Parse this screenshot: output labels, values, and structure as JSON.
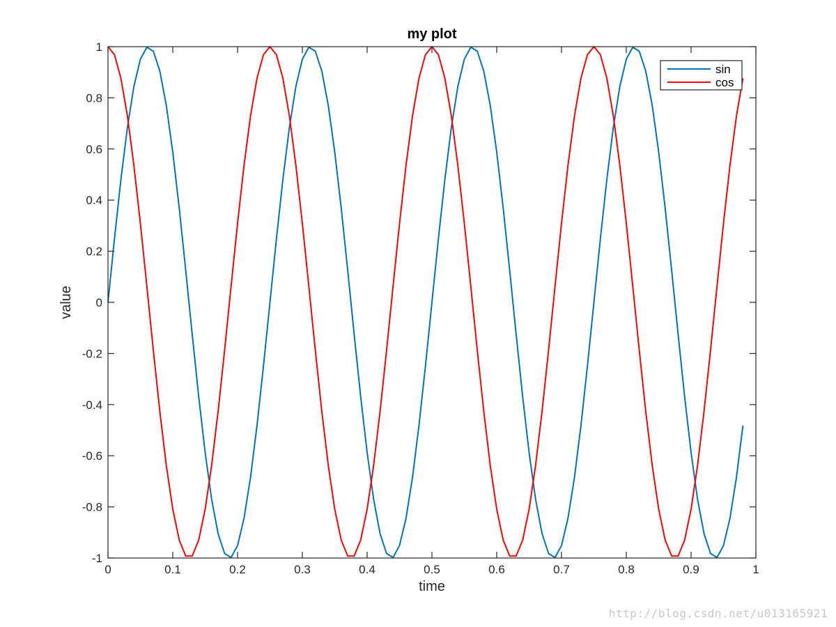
{
  "chart_data": {
    "type": "line",
    "title": "my plot",
    "xlabel": "time",
    "ylabel": "value",
    "xlim": [
      0,
      1
    ],
    "ylim": [
      -1,
      1
    ],
    "xticks": [
      0,
      0.1,
      0.2,
      0.3,
      0.4,
      0.5,
      0.6,
      0.7,
      0.8,
      0.9,
      1
    ],
    "xtick_labels": [
      "0",
      "0.1",
      "0.2",
      "0.3",
      "0.4",
      "0.5",
      "0.6",
      "0.7",
      "0.8",
      "0.9",
      "1"
    ],
    "yticks": [
      -1,
      -0.8,
      -0.6,
      -0.4,
      -0.2,
      0,
      0.2,
      0.4,
      0.6,
      0.8,
      1
    ],
    "ytick_labels": [
      "-1",
      "-0.8",
      "-0.6",
      "-0.4",
      "-0.2",
      "0",
      "0.2",
      "0.4",
      "0.6",
      "0.8",
      "1"
    ],
    "grid": false,
    "legend_position": "top-right",
    "series": [
      {
        "name": "sin",
        "color": "#0072bd",
        "x": [
          0,
          0.01,
          0.02,
          0.03,
          0.04,
          0.05,
          0.06,
          0.07,
          0.08,
          0.09,
          0.1,
          0.11,
          0.12,
          0.13,
          0.14,
          0.15,
          0.16,
          0.17,
          0.18,
          0.19,
          0.2,
          0.21,
          0.22,
          0.23,
          0.24,
          0.25,
          0.26,
          0.27,
          0.28,
          0.29,
          0.3,
          0.31,
          0.32,
          0.33,
          0.34,
          0.35,
          0.36,
          0.37,
          0.38,
          0.39,
          0.4,
          0.41,
          0.42,
          0.43,
          0.44,
          0.45,
          0.46,
          0.47,
          0.48,
          0.49,
          0.5,
          0.51,
          0.52,
          0.53,
          0.54,
          0.55,
          0.56,
          0.57,
          0.58,
          0.59,
          0.6,
          0.61,
          0.62,
          0.63,
          0.64,
          0.65,
          0.66,
          0.67,
          0.68,
          0.69,
          0.7,
          0.71,
          0.72,
          0.73,
          0.74,
          0.75,
          0.76,
          0.77,
          0.78,
          0.79,
          0.8,
          0.81,
          0.82,
          0.83,
          0.84,
          0.85,
          0.86,
          0.87,
          0.88,
          0.89,
          0.9,
          0.91,
          0.92,
          0.93,
          0.94,
          0.95,
          0.96,
          0.97,
          0.98
        ],
        "y": [
          0,
          0.2487,
          0.4818,
          0.6845,
          0.8443,
          0.9511,
          0.998,
          0.9823,
          0.9048,
          0.7705,
          0.5878,
          0.3681,
          0.1253,
          -0.1253,
          -0.3681,
          -0.5878,
          -0.7705,
          -0.9048,
          -0.9823,
          -0.998,
          -0.9511,
          -0.8443,
          -0.6845,
          -0.4818,
          -0.2487,
          0,
          0.2487,
          0.4818,
          0.6845,
          0.8443,
          0.9511,
          0.998,
          0.9823,
          0.9048,
          0.7705,
          0.5878,
          0.3681,
          0.1253,
          -0.1253,
          -0.3681,
          -0.5878,
          -0.7705,
          -0.9048,
          -0.9823,
          -0.998,
          -0.9511,
          -0.8443,
          -0.6845,
          -0.4818,
          -0.2487,
          0,
          0.2487,
          0.4818,
          0.6845,
          0.8443,
          0.9511,
          0.998,
          0.9823,
          0.9048,
          0.7705,
          0.5878,
          0.3681,
          0.1253,
          -0.1253,
          -0.3681,
          -0.5878,
          -0.7705,
          -0.9048,
          -0.9823,
          -0.998,
          -0.9511,
          -0.8443,
          -0.6845,
          -0.4818,
          -0.2487,
          0,
          0.2487,
          0.4818,
          0.6845,
          0.8443,
          0.9511,
          0.998,
          0.9823,
          0.9048,
          0.7705,
          0.5878,
          0.3681,
          0.1253,
          -0.1253,
          -0.3681,
          -0.5878,
          -0.7705,
          -0.9048,
          -0.9823,
          -0.998,
          -0.9511,
          -0.8443,
          -0.6845,
          -0.4818
        ]
      },
      {
        "name": "cos",
        "color": "#ff0000",
        "x": [
          0,
          0.01,
          0.02,
          0.03,
          0.04,
          0.05,
          0.06,
          0.07,
          0.08,
          0.09,
          0.1,
          0.11,
          0.12,
          0.13,
          0.14,
          0.15,
          0.16,
          0.17,
          0.18,
          0.19,
          0.2,
          0.21,
          0.22,
          0.23,
          0.24,
          0.25,
          0.26,
          0.27,
          0.28,
          0.29,
          0.3,
          0.31,
          0.32,
          0.33,
          0.34,
          0.35,
          0.36,
          0.37,
          0.38,
          0.39,
          0.4,
          0.41,
          0.42,
          0.43,
          0.44,
          0.45,
          0.46,
          0.47,
          0.48,
          0.49,
          0.5,
          0.51,
          0.52,
          0.53,
          0.54,
          0.55,
          0.56,
          0.57,
          0.58,
          0.59,
          0.6,
          0.61,
          0.62,
          0.63,
          0.64,
          0.65,
          0.66,
          0.67,
          0.68,
          0.69,
          0.7,
          0.71,
          0.72,
          0.73,
          0.74,
          0.75,
          0.76,
          0.77,
          0.78,
          0.79,
          0.8,
          0.81,
          0.82,
          0.83,
          0.84,
          0.85,
          0.86,
          0.87,
          0.88,
          0.89,
          0.9,
          0.91,
          0.92,
          0.93,
          0.94,
          0.95,
          0.96,
          0.97,
          0.98
        ],
        "y": [
          1,
          0.9686,
          0.8763,
          0.729,
          0.5358,
          0.309,
          0.0628,
          -0.1874,
          -0.4258,
          -0.6374,
          -0.809,
          -0.9298,
          -0.9921,
          -0.9921,
          -0.9298,
          -0.809,
          -0.6374,
          -0.4258,
          -0.1874,
          0.0628,
          0.309,
          0.5358,
          0.729,
          0.8763,
          0.9686,
          1,
          0.9686,
          0.8763,
          0.729,
          0.5358,
          0.309,
          0.0628,
          -0.1874,
          -0.4258,
          -0.6374,
          -0.809,
          -0.9298,
          -0.9921,
          -0.9921,
          -0.9298,
          -0.809,
          -0.6374,
          -0.4258,
          -0.1874,
          0.0628,
          0.309,
          0.5358,
          0.729,
          0.8763,
          0.9686,
          1,
          0.9686,
          0.8763,
          0.729,
          0.5358,
          0.309,
          0.0628,
          -0.1874,
          -0.4258,
          -0.6374,
          -0.809,
          -0.9298,
          -0.9921,
          -0.9921,
          -0.9298,
          -0.809,
          -0.6374,
          -0.4258,
          -0.1874,
          0.0628,
          0.309,
          0.5358,
          0.729,
          0.8763,
          0.9686,
          1,
          0.9686,
          0.8763,
          0.729,
          0.5358,
          0.309,
          0.0628,
          -0.1874,
          -0.4258,
          -0.6374,
          -0.809,
          -0.9298,
          -0.9921,
          -0.9921,
          -0.9298,
          -0.809,
          -0.6374,
          -0.4258,
          -0.1874,
          0.0628,
          0.309,
          0.5358,
          0.729,
          0.8763
        ]
      }
    ]
  },
  "watermark": {
    "text": "http://blog.csdn.net/u013165921"
  }
}
